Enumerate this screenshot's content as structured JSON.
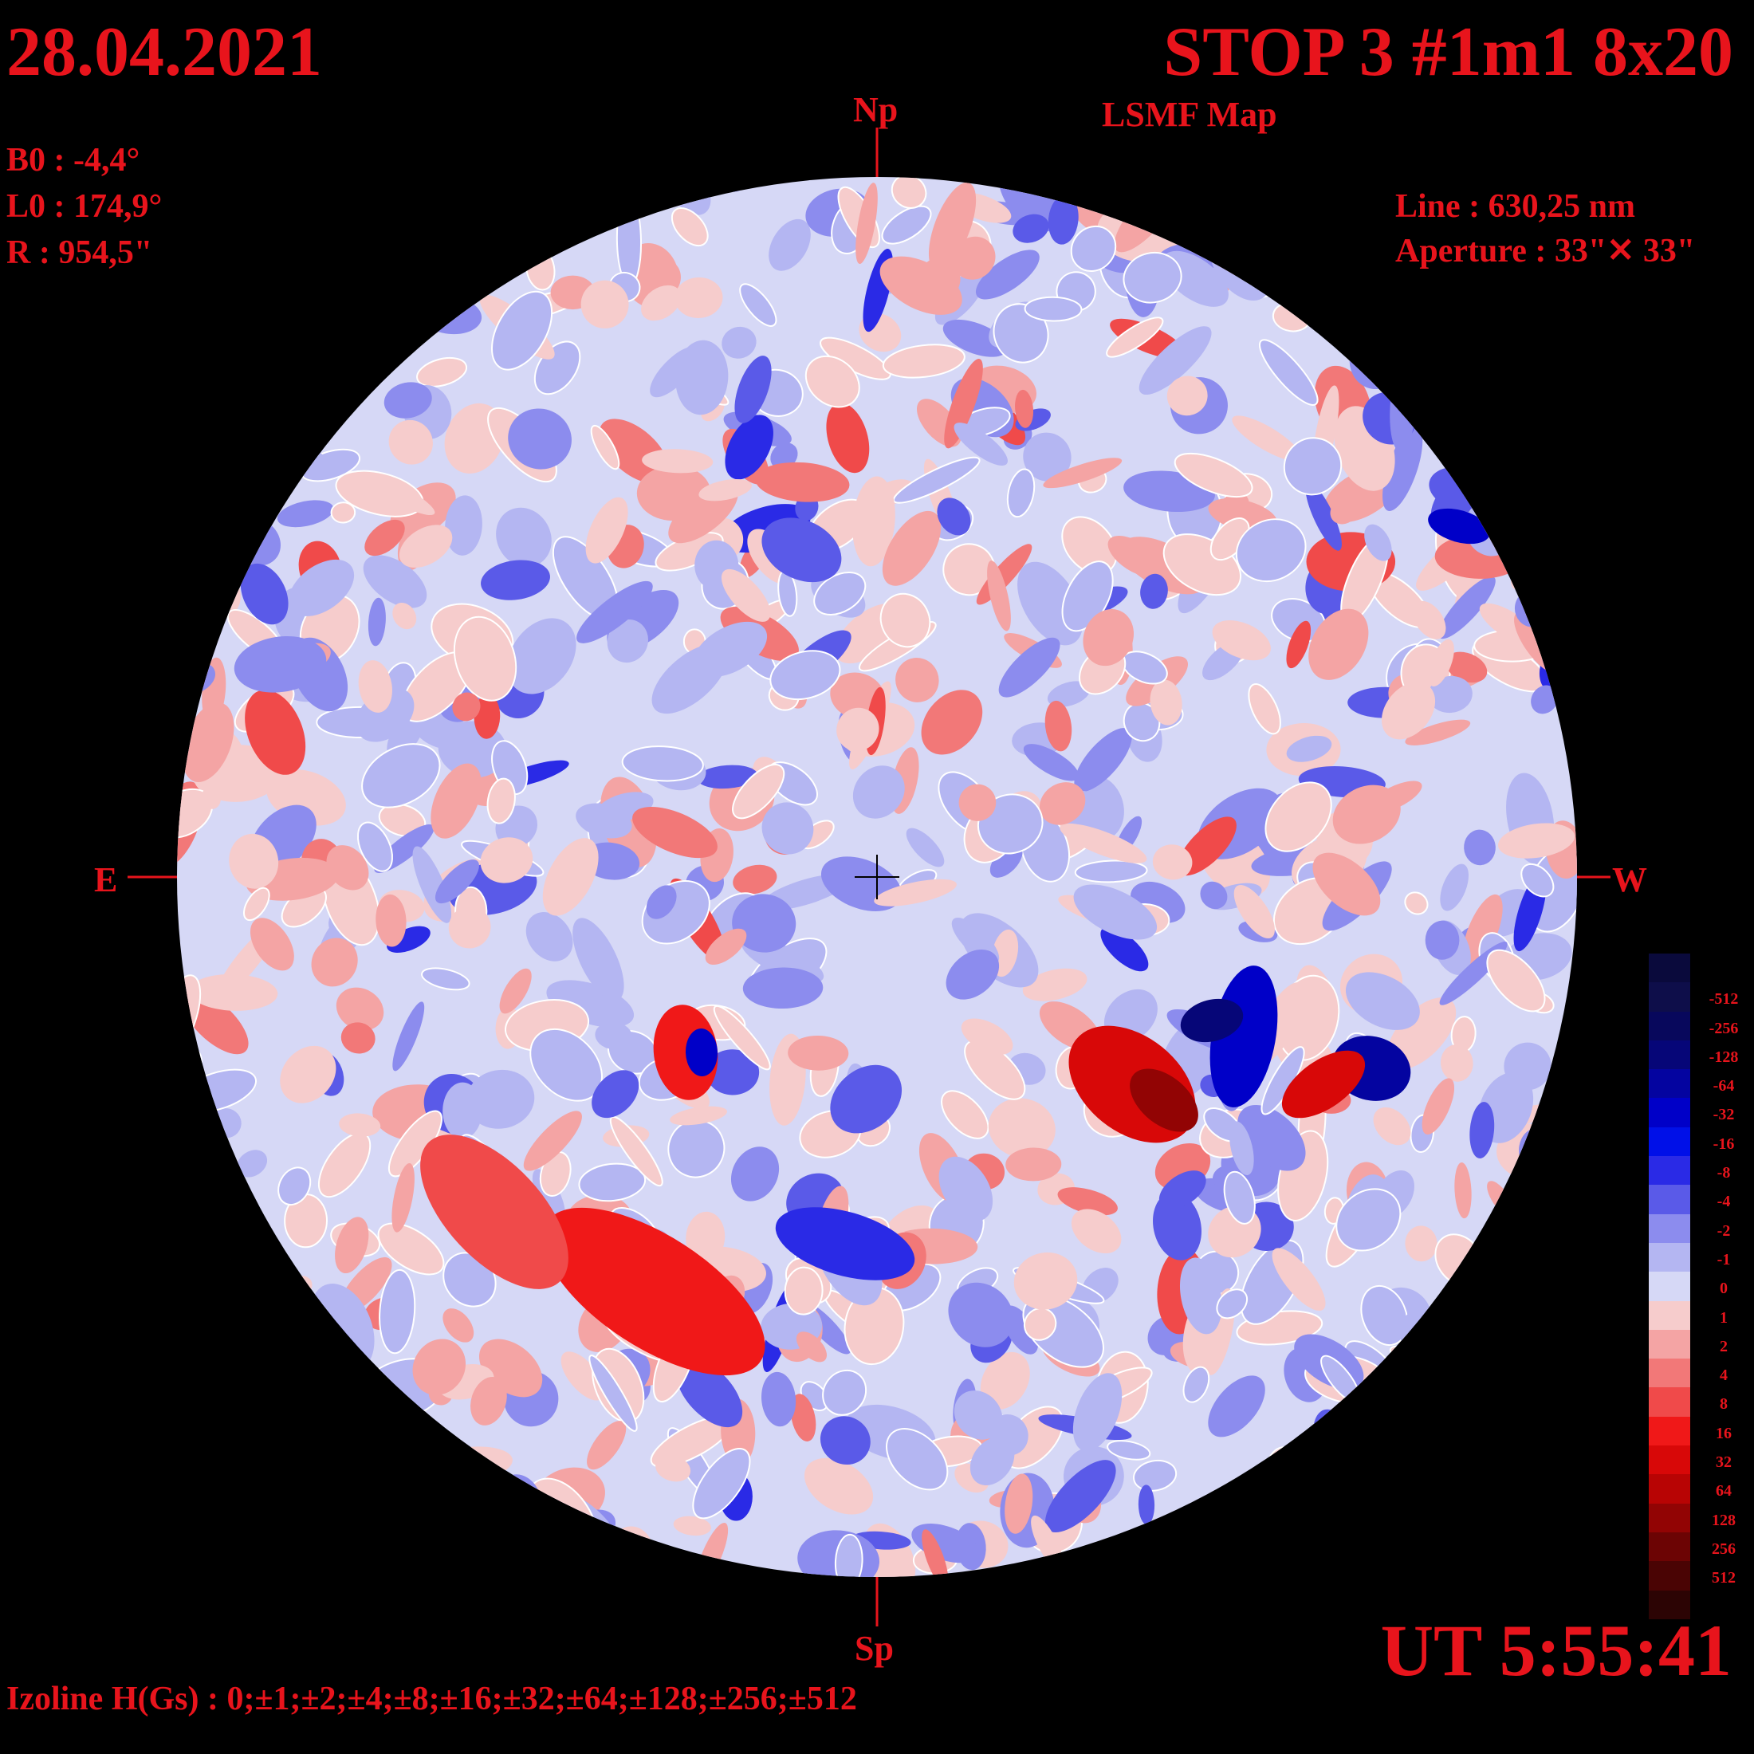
{
  "header": {
    "date": "28.04.2021",
    "title": "STOP 3 #1m1 8x20",
    "subtitle": "LSMF  Map"
  },
  "params": {
    "b0": "B0 : -4,4°",
    "l0": "L0 : 174,9°",
    "r": "R  : 954,5\""
  },
  "instrument": {
    "line": "Line :  630,25 nm",
    "aperture": "Aperture : 33\"✕ 33\""
  },
  "directions": {
    "north": "Np",
    "south": "Sp",
    "east": "E",
    "west": "W"
  },
  "footer": {
    "time": "UT 5:55:41",
    "izoline": "Izoline H(Gs) : 0;±1;±2;±4;±8;±16;±32;±64;±128;±256;±512"
  },
  "legend": {
    "items": [
      {
        "label": "",
        "color": "#0a0a3c"
      },
      {
        "label": "-512",
        "color": "#0e0e4a"
      },
      {
        "label": "-256",
        "color": "#08085c"
      },
      {
        "label": "-128",
        "color": "#060678"
      },
      {
        "label": "-64",
        "color": "#0404a0"
      },
      {
        "label": "-32",
        "color": "#0000c8"
      },
      {
        "label": "-16",
        "color": "#0010e8"
      },
      {
        "label": "-8",
        "color": "#2a2ae6"
      },
      {
        "label": "-4",
        "color": "#5a5ae8"
      },
      {
        "label": "-2",
        "color": "#8c8cee"
      },
      {
        "label": "-1",
        "color": "#b4b6f2"
      },
      {
        "label": "0",
        "color": "#d6d8f6"
      },
      {
        "label": "1",
        "color": "#f6cccc"
      },
      {
        "label": "2",
        "color": "#f4a4a4"
      },
      {
        "label": "4",
        "color": "#f27878"
      },
      {
        "label": "8",
        "color": "#f04a4a"
      },
      {
        "label": "16",
        "color": "#f01818"
      },
      {
        "label": "32",
        "color": "#d80808"
      },
      {
        "label": "64",
        "color": "#b80404"
      },
      {
        "label": "128",
        "color": "#920404"
      },
      {
        "label": "256",
        "color": "#6c0404"
      },
      {
        "label": "512",
        "color": "#4a0404"
      },
      {
        "label": "",
        "color": "#2c0404"
      }
    ]
  },
  "colors": {
    "text": "#e8141c",
    "background": "#000000",
    "isoline": "#ffffff"
  }
}
